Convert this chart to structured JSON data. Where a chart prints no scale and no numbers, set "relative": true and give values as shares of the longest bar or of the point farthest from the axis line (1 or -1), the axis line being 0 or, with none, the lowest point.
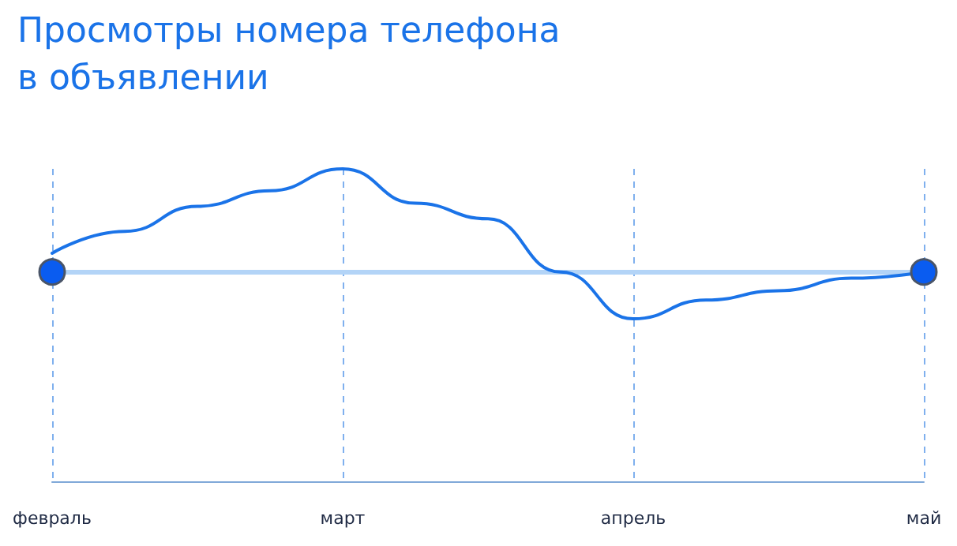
{
  "chart_data": {
    "type": "line",
    "title": "Просмотры номера телефона\nв объявлении",
    "relative": true,
    "categories": [
      "февраль",
      null,
      null,
      null,
      "март",
      null,
      null,
      null,
      "апрель",
      null,
      null,
      null,
      "май"
    ],
    "series": [
      {
        "color": "#1a73e8",
        "values": [
          0.73,
          0.8,
          0.88,
          0.93,
          1,
          0.89,
          0.84,
          0.67,
          0.52,
          0.58,
          0.61,
          0.65,
          0.67
        ]
      },
      {
        "type": "scatter",
        "color": "#0a5cf0",
        "marker": "circle",
        "x": [
          "февраль",
          "май"
        ],
        "values": [
          0.67,
          0.67
        ]
      }
    ],
    "ref_lines": [
      {
        "axis": "y",
        "value": 0.67,
        "color": "#b3d4f7"
      }
    ],
    "grid": "x",
    "tick_labels": "x",
    "marker": "none",
    "line_style": "solid"
  }
}
